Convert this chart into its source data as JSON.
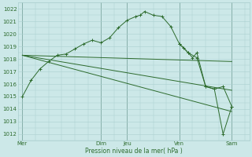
{
  "background_color": "#cce8e8",
  "grid_color": "#aacfcf",
  "line_color": "#2d6b2d",
  "tick_label_color": "#2d6b2d",
  "xlabel": "Pression niveau de la mer( hPa )",
  "ylim": [
    1011.5,
    1022.5
  ],
  "yticks": [
    1012,
    1013,
    1014,
    1015,
    1016,
    1017,
    1018,
    1019,
    1020,
    1021,
    1022
  ],
  "x_day_labels": [
    "Mer",
    "Dim",
    "Jeu",
    "Ven",
    "Sam"
  ],
  "x_day_positions": [
    0,
    18,
    24,
    36,
    48
  ],
  "xlim": [
    -1,
    52
  ],
  "main_line_x": [
    0,
    2,
    4,
    6,
    8,
    10,
    12,
    14,
    16,
    18,
    20,
    22,
    24,
    26,
    27,
    28,
    30,
    32,
    34,
    36,
    37,
    38,
    39,
    40,
    42,
    44,
    46,
    48
  ],
  "main_line_y": [
    1015.0,
    1016.3,
    1017.2,
    1017.8,
    1018.3,
    1018.4,
    1018.8,
    1019.2,
    1019.5,
    1019.3,
    1019.7,
    1020.5,
    1021.1,
    1021.4,
    1021.5,
    1021.8,
    1021.5,
    1021.4,
    1020.6,
    1019.2,
    1018.9,
    1018.5,
    1018.1,
    1018.5,
    1015.8,
    1015.6,
    1015.8,
    1014.2
  ],
  "right_zigzag_x": [
    36,
    38,
    40,
    42,
    44,
    46,
    48
  ],
  "right_zigzag_y": [
    1019.2,
    1018.5,
    1018.1,
    1015.8,
    1015.6,
    1012.0,
    1014.2
  ],
  "trend1_x": [
    0,
    48
  ],
  "trend1_y": [
    1018.3,
    1017.8
  ],
  "trend2_x": [
    0,
    48
  ],
  "trend2_y": [
    1018.3,
    1015.5
  ],
  "trend3_x": [
    0,
    48
  ],
  "trend3_y": [
    1018.3,
    1013.8
  ]
}
